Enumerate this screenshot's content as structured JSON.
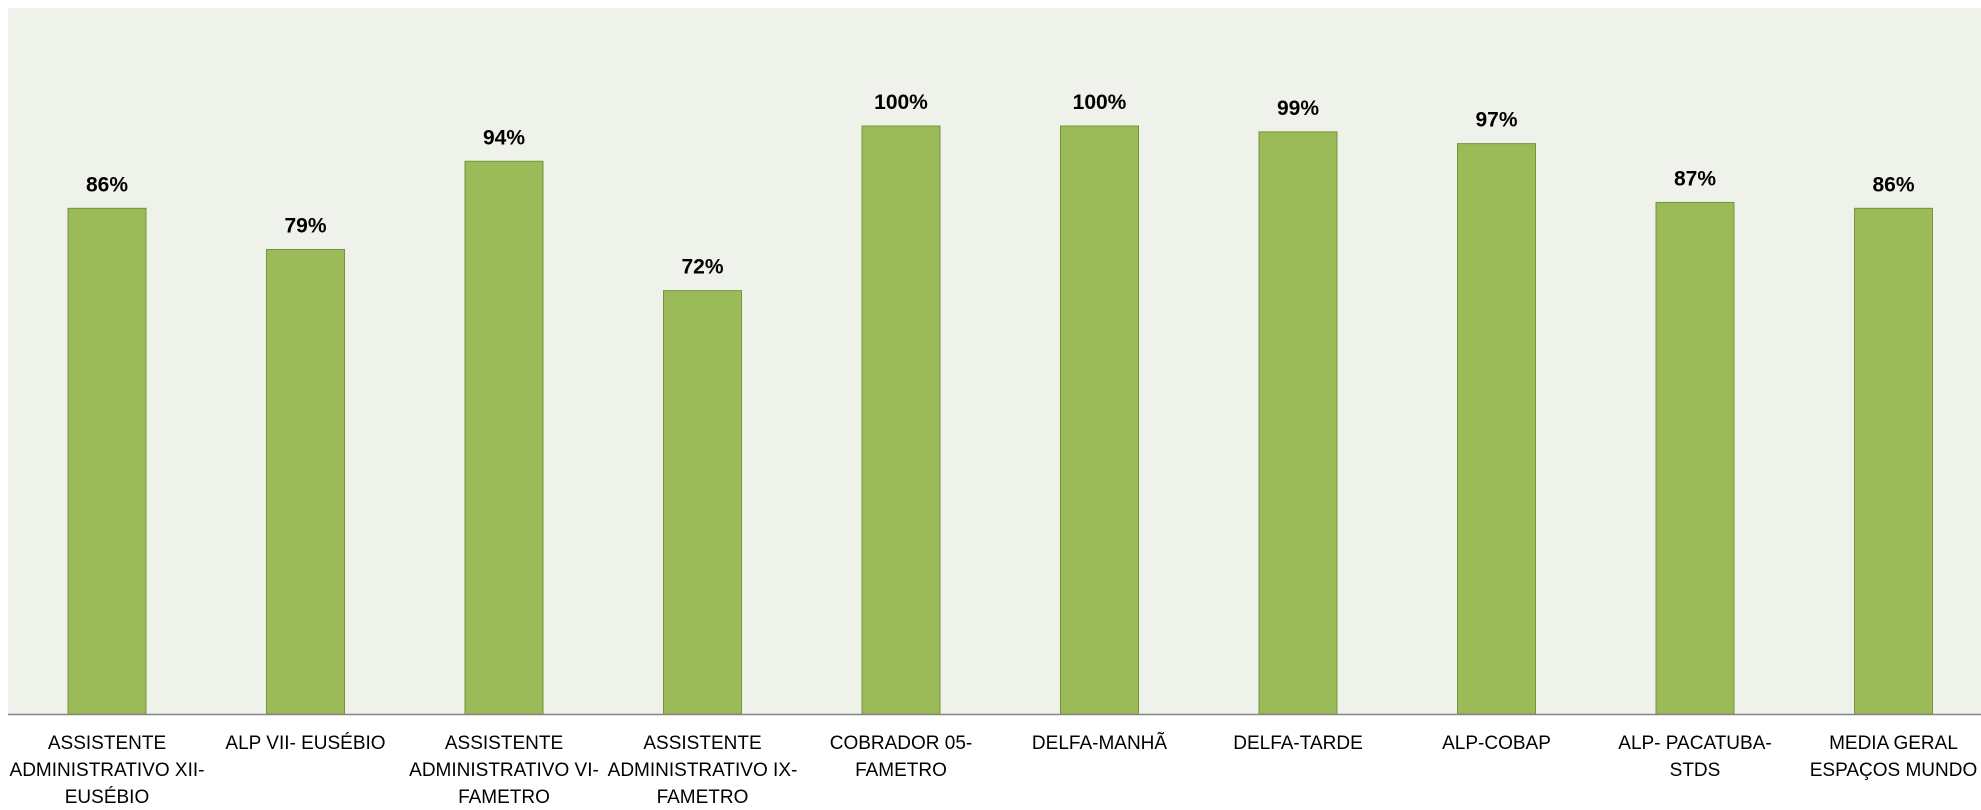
{
  "colors": {
    "plot_background": "#eff2ea",
    "bar_fill": "#9bbb59",
    "bar_stroke": "#76933c",
    "axis": "#868686"
  },
  "chart_data": {
    "type": "bar",
    "categories": [
      "ASSISTENTE ADMINISTRATIVO XII- EUSÉBIO",
      "ALP VII- EUSÉBIO",
      "ASSISTENTE ADMINISTRATIVO VI- FAMETRO",
      "ASSISTENTE ADMINISTRATIVO IX- FAMETRO",
      "COBRADOR 05- FAMETRO",
      "DELFA-MANHÃ",
      "DELFA-TARDE",
      "ALP-COBAP",
      "ALP- PACATUBA- STDS",
      "MEDIA GERAL ESPAÇOS MUNDO"
    ],
    "category_lines": [
      [
        "ASSISTENTE",
        "ADMINISTRATIVO XII-",
        "EUSÉBIO"
      ],
      [
        "ALP VII- EUSÉBIO"
      ],
      [
        "ASSISTENTE",
        "ADMINISTRATIVO VI-",
        "FAMETRO"
      ],
      [
        "ASSISTENTE",
        "ADMINISTRATIVO IX-",
        "FAMETRO"
      ],
      [
        "COBRADOR 05-",
        "FAMETRO"
      ],
      [
        "DELFA-MANHÃ"
      ],
      [
        "DELFA-TARDE"
      ],
      [
        "ALP-COBAP"
      ],
      [
        "ALP- PACATUBA-",
        "STDS"
      ],
      [
        "MEDIA GERAL",
        "ESPAÇOS MUNDO"
      ]
    ],
    "values": [
      86,
      79,
      94,
      72,
      100,
      100,
      99,
      97,
      87,
      86
    ],
    "data_labels": [
      "86%",
      "79%",
      "94%",
      "72%",
      "100%",
      "100%",
      "99%",
      "97%",
      "87%",
      "86%"
    ],
    "title": "",
    "xlabel": "",
    "ylabel": "",
    "ylim": [
      0,
      120
    ],
    "grid": false,
    "legend": "none"
  }
}
